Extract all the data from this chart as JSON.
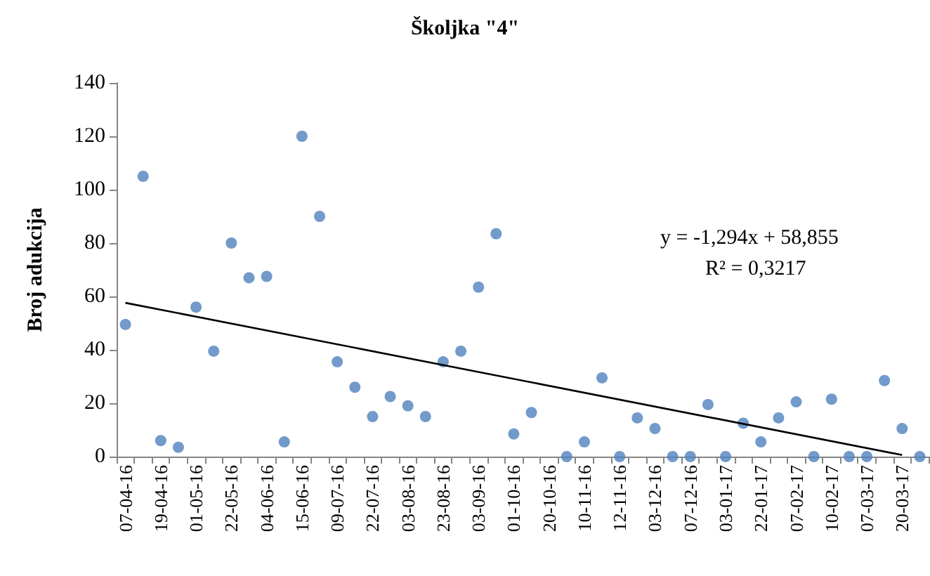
{
  "chart_data": {
    "type": "scatter",
    "title": "Školjka \"4\"",
    "ylabel": "Broj adukcija",
    "categories": [
      "07-04-16",
      null,
      "19-04-16",
      null,
      "01-05-16",
      null,
      "22-05-16",
      null,
      "04-06-16",
      null,
      "15-06-16",
      null,
      "09-07-16",
      null,
      "22-07-16",
      null,
      "03-08-16",
      null,
      "23-08-16",
      null,
      "03-09-16",
      null,
      "01-10-16",
      null,
      "20-10-16",
      null,
      "10-11-16",
      null,
      "12-11-16",
      null,
      "03-12-16",
      null,
      "07-12-16",
      null,
      "03-01-17",
      null,
      "22-01-17",
      null,
      "07-02-17",
      null,
      "10-02-17",
      null,
      "07-03-17",
      null,
      "20-03-17",
      null
    ],
    "series": [
      {
        "color": "#4f81bd",
        "marker": "circle",
        "values": [
          49.5,
          105,
          6,
          3.5,
          56,
          39.5,
          80,
          67,
          67.5,
          5.5,
          120,
          90,
          35.5,
          26,
          15,
          22.5,
          19,
          15,
          35.5,
          39.5,
          63.5,
          83.5,
          8.5,
          16.5,
          null,
          0,
          5.5,
          29.5,
          0,
          14.5,
          10.5,
          0,
          0,
          19.5,
          0,
          12.5,
          5.5,
          14.5,
          20.5,
          0,
          21.5,
          0,
          0,
          28.5,
          10.5,
          0
        ]
      },
      {
        "type": "line",
        "color": "#000000",
        "marker": "none",
        "line_style": "solid",
        "values": [
          57.6,
          null,
          null,
          null,
          null,
          null,
          null,
          null,
          null,
          null,
          null,
          null,
          null,
          null,
          null,
          null,
          null,
          null,
          null,
          null,
          null,
          null,
          null,
          null,
          null,
          null,
          null,
          null,
          null,
          null,
          null,
          null,
          null,
          null,
          null,
          null,
          null,
          null,
          null,
          null,
          null,
          null,
          null,
          null,
          0.6,
          null
        ]
      }
    ],
    "ylim": [
      0,
      140
    ],
    "yticks": [
      0,
      20,
      40,
      60,
      80,
      100,
      120,
      140
    ],
    "annotations": [
      "y = -1,294x + 58,855",
      "R² = 0,3217"
    ]
  }
}
